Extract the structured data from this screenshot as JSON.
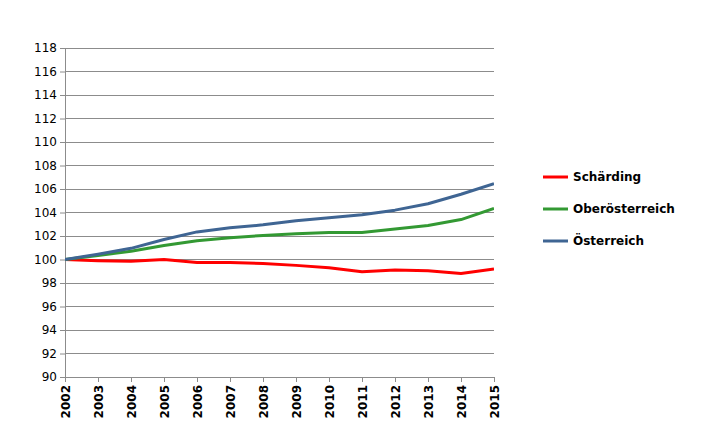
{
  "chart_data": {
    "type": "line",
    "x": [
      2002,
      2003,
      2004,
      2005,
      2006,
      2007,
      2008,
      2009,
      2010,
      2011,
      2012,
      2013,
      2014,
      2015
    ],
    "xlim": [
      2002,
      2015
    ],
    "xticks": [
      2002,
      2003,
      2004,
      2005,
      2006,
      2007,
      2008,
      2009,
      2010,
      2011,
      2012,
      2013,
      2014,
      2015
    ],
    "ylim": [
      90,
      118
    ],
    "yticks": [
      90,
      92,
      94,
      96,
      98,
      100,
      102,
      104,
      106,
      108,
      110,
      112,
      114,
      116,
      118
    ],
    "grid": true,
    "legend": "right",
    "series": [
      {
        "name": "Schärding",
        "color": "#ff0000",
        "values": [
          100,
          99.9,
          99.85,
          100.0,
          99.75,
          99.75,
          99.65,
          99.5,
          99.3,
          98.95,
          99.1,
          99.05,
          98.8,
          99.2
        ]
      },
      {
        "name": "Oberösterreich",
        "color": "#339933",
        "values": [
          100,
          100.35,
          100.7,
          101.2,
          101.6,
          101.85,
          102.05,
          102.2,
          102.3,
          102.3,
          102.6,
          102.9,
          103.4,
          104.35
        ]
      },
      {
        "name": "Österreich",
        "color": "#3f6593",
        "values": [
          100,
          100.45,
          100.95,
          101.7,
          102.35,
          102.7,
          102.95,
          103.3,
          103.55,
          103.8,
          104.2,
          104.75,
          105.55,
          106.45
        ]
      }
    ]
  }
}
